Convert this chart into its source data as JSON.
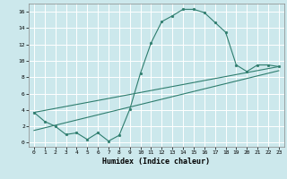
{
  "background_color": "#cce8ec",
  "grid_color": "#ffffff",
  "line_color": "#2e7d6e",
  "xlabel": "Humidex (Indice chaleur)",
  "xlim": [
    -0.5,
    23.5
  ],
  "ylim": [
    -0.5,
    17
  ],
  "yticks": [
    0,
    2,
    4,
    6,
    8,
    10,
    12,
    14,
    16
  ],
  "xticks": [
    0,
    1,
    2,
    3,
    4,
    5,
    6,
    7,
    8,
    9,
    10,
    11,
    12,
    13,
    14,
    15,
    16,
    17,
    18,
    19,
    20,
    21,
    22,
    23
  ],
  "line1_x": [
    0,
    1,
    2,
    3,
    4,
    5,
    6,
    7,
    8,
    9,
    10,
    11,
    12,
    13,
    14,
    15,
    16,
    17,
    18,
    19,
    20,
    21,
    22,
    23
  ],
  "line1_y": [
    3.7,
    2.6,
    2.0,
    1.0,
    1.2,
    0.4,
    1.2,
    0.2,
    0.9,
    4.1,
    8.5,
    12.2,
    14.8,
    15.5,
    16.3,
    16.3,
    15.9,
    14.7,
    13.5,
    9.5,
    8.7,
    9.5,
    9.5,
    9.3
  ],
  "line2_x": [
    0,
    23
  ],
  "line2_y": [
    3.7,
    9.3
  ],
  "line3_x": [
    0,
    23
  ],
  "line3_y": [
    1.5,
    8.8
  ],
  "xlabel_fontsize": 6,
  "tick_fontsize": 4.5,
  "linewidth": 0.8,
  "markersize": 2.0
}
